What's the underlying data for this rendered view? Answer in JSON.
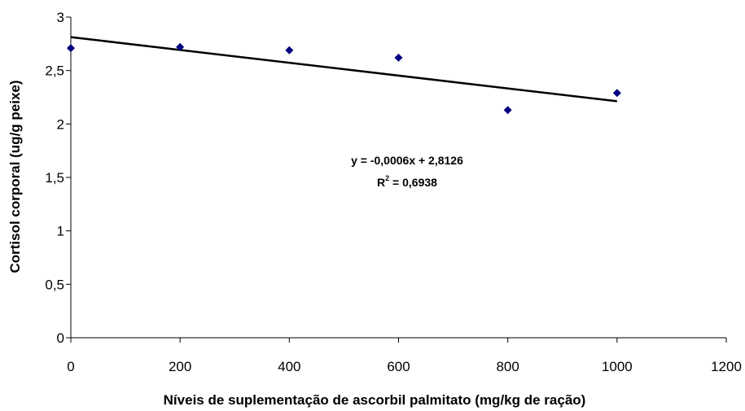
{
  "chart_data": {
    "type": "scatter",
    "xlabel": "Níveis de suplementação de ascorbil palmitato (mg/kg de ração)",
    "ylabel": "Cortisol corporal (ug/g peixe)",
    "xlim": [
      0,
      1200
    ],
    "ylim": [
      0,
      3
    ],
    "x_ticks": [
      0,
      200,
      400,
      600,
      800,
      1000,
      1200
    ],
    "x_tick_labels": [
      "0",
      "200",
      "400",
      "600",
      "800",
      "1000",
      "1200"
    ],
    "y_ticks": [
      0,
      0.5,
      1,
      1.5,
      2,
      2.5,
      3
    ],
    "y_tick_labels": [
      "0",
      "0,5",
      "1",
      "1,5",
      "2",
      "2,5",
      "3"
    ],
    "grid": false,
    "series": [
      {
        "x": [
          0,
          200,
          400,
          600,
          800,
          1000
        ],
        "y": [
          2.71,
          2.72,
          2.69,
          2.62,
          2.13,
          2.29
        ],
        "color": "#000080",
        "marker": "diamond"
      }
    ],
    "trendline": {
      "slope": -0.0006,
      "intercept": 2.8126,
      "x_range": [
        0,
        1000
      ],
      "color": "#000000"
    },
    "annotations": {
      "equation": "y = -0,0006x + 2,8126",
      "r2_prefix": "R",
      "r2_sup": "2",
      "r2_value": " = 0,6938"
    }
  }
}
